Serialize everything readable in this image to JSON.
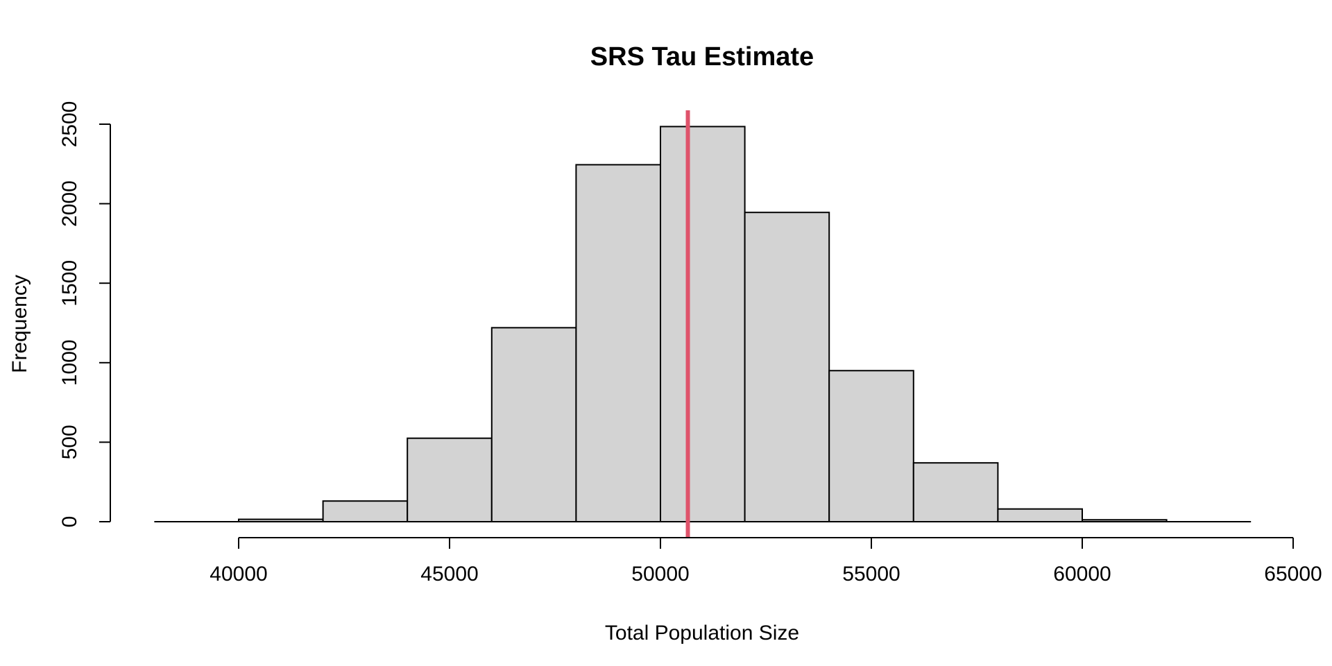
{
  "chart_data": {
    "type": "bar",
    "title": "SRS Tau Estimate",
    "xlabel": "Total Population Size",
    "ylabel": "Frequency",
    "bins": [
      {
        "start": 38000,
        "end": 40000,
        "count": 0
      },
      {
        "start": 40000,
        "end": 42000,
        "count": 15
      },
      {
        "start": 42000,
        "end": 44000,
        "count": 130
      },
      {
        "start": 44000,
        "end": 46000,
        "count": 525
      },
      {
        "start": 46000,
        "end": 48000,
        "count": 1220
      },
      {
        "start": 48000,
        "end": 50000,
        "count": 2245
      },
      {
        "start": 50000,
        "end": 52000,
        "count": 2485
      },
      {
        "start": 52000,
        "end": 54000,
        "count": 1945
      },
      {
        "start": 54000,
        "end": 56000,
        "count": 950
      },
      {
        "start": 56000,
        "end": 58000,
        "count": 370
      },
      {
        "start": 58000,
        "end": 60000,
        "count": 80
      },
      {
        "start": 60000,
        "end": 62000,
        "count": 12
      },
      {
        "start": 62000,
        "end": 64000,
        "count": 0
      }
    ],
    "xlim": [
      38000,
      64000
    ],
    "ylim": [
      0,
      2500
    ],
    "x_ticks": [
      "40000",
      "45000",
      "50000",
      "55000",
      "60000",
      "65000"
    ],
    "x_tick_values": [
      40000,
      45000,
      50000,
      55000,
      60000,
      65000
    ],
    "y_ticks": [
      "0",
      "500",
      "1000",
      "1500",
      "2000",
      "2500"
    ],
    "y_tick_values": [
      0,
      500,
      1000,
      1500,
      2000,
      2500
    ],
    "reference_line": {
      "x": 50650,
      "color": "#df536b"
    },
    "bar_fill": "#d3d3d3",
    "grid": false,
    "legend": "none"
  }
}
